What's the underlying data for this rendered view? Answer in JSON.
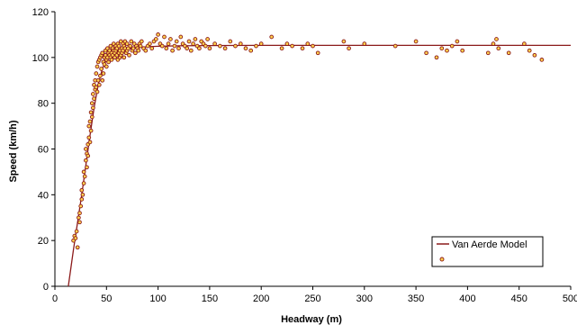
{
  "chart_data": {
    "type": "scatter",
    "title": "",
    "xlabel": "Headway (m)",
    "ylabel": "Speed (km/h)",
    "xlim": [
      0,
      500
    ],
    "ylim": [
      0,
      120
    ],
    "xticks": [
      0,
      50,
      100,
      150,
      200,
      250,
      300,
      350,
      400,
      450,
      500
    ],
    "yticks": [
      0,
      20,
      40,
      60,
      80,
      100,
      120
    ],
    "grid": false,
    "legend_position": "bottom-right",
    "colors": {
      "series": "#8b1a1a",
      "marker_fill": "#ffd24d"
    },
    "series": [
      {
        "name": "Van Aerde Model",
        "kind": "line",
        "x": [
          13,
          18,
          22,
          26,
          30,
          34,
          38,
          42,
          46,
          50,
          55,
          60,
          65,
          70,
          80,
          90,
          100,
          120,
          150,
          200,
          250,
          300,
          400,
          500
        ],
        "y": [
          0,
          16,
          28,
          40,
          53,
          66,
          78,
          88,
          95,
          99,
          101.5,
          102.6,
          103.3,
          103.8,
          104.3,
          104.7,
          104.9,
          105.1,
          105.2,
          105.3,
          105.3,
          105.3,
          105.3,
          105.3
        ]
      },
      {
        "name": "",
        "kind": "scatter",
        "x": [
          18,
          19,
          20,
          21,
          22,
          23,
          24,
          24,
          25,
          26,
          26,
          27,
          28,
          28,
          29,
          30,
          30,
          31,
          31,
          32,
          32,
          33,
          33,
          34,
          34,
          35,
          35,
          36,
          36,
          37,
          37,
          38,
          38,
          39,
          39,
          40,
          40,
          41,
          41,
          42,
          42,
          43,
          43,
          44,
          44,
          45,
          45,
          46,
          46,
          47,
          47,
          48,
          48,
          49,
          49,
          50,
          50,
          51,
          51,
          52,
          52,
          53,
          53,
          54,
          54,
          55,
          55,
          56,
          56,
          57,
          57,
          58,
          58,
          59,
          59,
          60,
          60,
          61,
          61,
          62,
          62,
          63,
          63,
          64,
          64,
          65,
          65,
          66,
          66,
          67,
          67,
          68,
          68,
          69,
          70,
          70,
          71,
          72,
          73,
          74,
          75,
          76,
          77,
          78,
          79,
          80,
          81,
          82,
          83,
          84,
          86,
          88,
          90,
          92,
          94,
          96,
          98,
          100,
          102,
          104,
          106,
          108,
          110,
          112,
          114,
          116,
          118,
          120,
          122,
          124,
          126,
          128,
          130,
          132,
          134,
          136,
          138,
          140,
          142,
          144,
          146,
          148,
          150,
          155,
          160,
          165,
          170,
          175,
          180,
          185,
          190,
          195,
          200,
          210,
          220,
          225,
          230,
          240,
          245,
          250,
          255,
          280,
          285,
          300,
          330,
          350,
          360,
          370,
          375,
          380,
          385,
          390,
          395,
          420,
          425,
          428,
          430,
          440,
          455,
          460,
          465,
          472
        ],
        "y": [
          20,
          22,
          21,
          24,
          17,
          30,
          28,
          32,
          35,
          38,
          42,
          40,
          45,
          50,
          48,
          55,
          60,
          52,
          58,
          62,
          57,
          65,
          70,
          63,
          72,
          68,
          76,
          74,
          80,
          78,
          84,
          82,
          88,
          86,
          90,
          87,
          93,
          85,
          96,
          90,
          98,
          88,
          99,
          92,
          100,
          95,
          101,
          90,
          102,
          93,
          98,
          100,
          97,
          103,
          101,
          99,
          96,
          100,
          104,
          102,
          98,
          101,
          103,
          100,
          105,
          102,
          99,
          104,
          101,
          103,
          106,
          102,
          100,
          105,
          103,
          101,
          104,
          99,
          106,
          102,
          105,
          100,
          103,
          107,
          101,
          104,
          102,
          106,
          103,
          100,
          105,
          104,
          107,
          102,
          103,
          106,
          104,
          101,
          105,
          107,
          103,
          104,
          106,
          102,
          105,
          104,
          103,
          106,
          105,
          107,
          104,
          103,
          105,
          106,
          104,
          107,
          108,
          110,
          106,
          105,
          109,
          104,
          106,
          108,
          103,
          105,
          107,
          104,
          109,
          106,
          105,
          104,
          107,
          103,
          106,
          108,
          105,
          104,
          107,
          106,
          105,
          108,
          104,
          106,
          105,
          104,
          107,
          105,
          106,
          104,
          103,
          105,
          106,
          109,
          104,
          106,
          105,
          104,
          106,
          105,
          102,
          107,
          104,
          106,
          105,
          107,
          102,
          100,
          104,
          103,
          105,
          107,
          103,
          102,
          106,
          108,
          104,
          102,
          106,
          103,
          101,
          99
        ]
      }
    ]
  }
}
